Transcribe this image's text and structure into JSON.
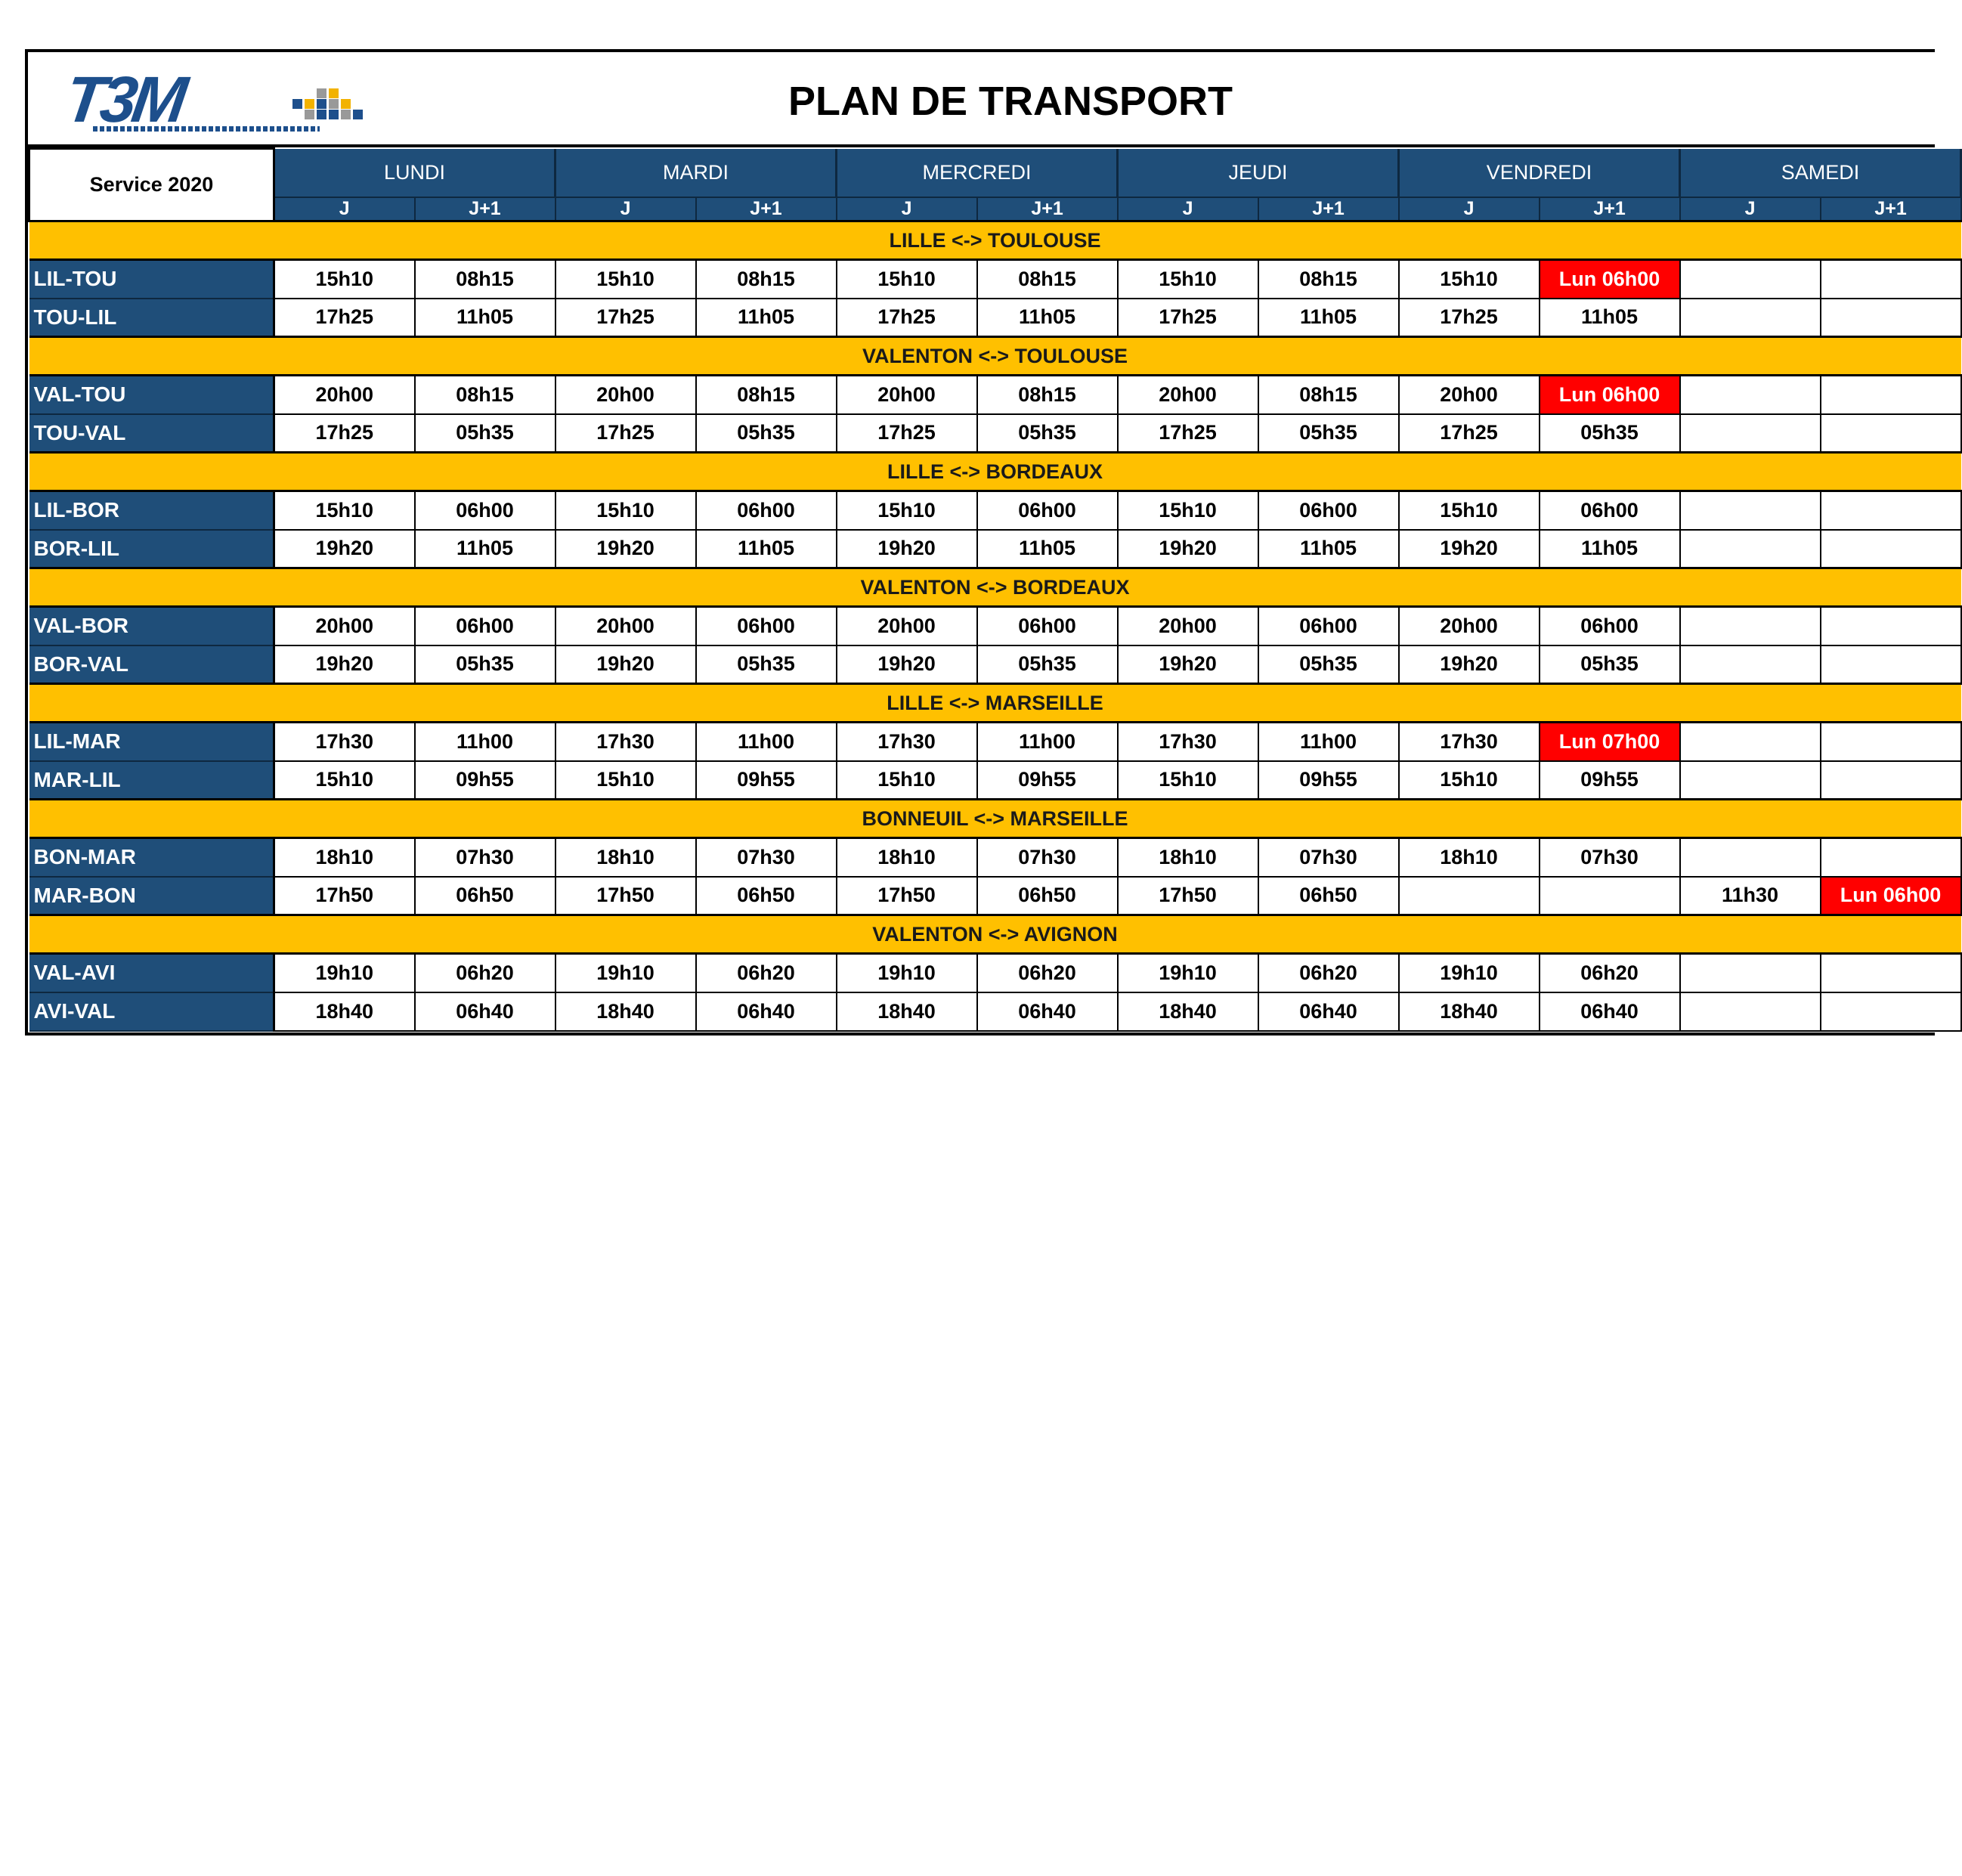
{
  "logo": {
    "text": "T3M"
  },
  "title": "PLAN DE TRANSPORT",
  "service_label": "Service 2020",
  "days": [
    "LUNDI",
    "MARDI",
    "MERCREDI",
    "JEUDI",
    "VENDREDI",
    "SAMEDI"
  ],
  "sub_headers": [
    "J",
    "J+1"
  ],
  "colors": {
    "header_blue": "#1f4e79",
    "group_yellow": "#ffc000",
    "highlight_red": "#ff0000",
    "logo_blue": "#1d4f8c"
  },
  "groups": [
    {
      "title": "LILLE <-> TOULOUSE",
      "routes": [
        {
          "code": "LIL-TOU",
          "cells": [
            "15h10",
            "08h15",
            "15h10",
            "08h15",
            "15h10",
            "08h15",
            "15h10",
            "08h15",
            "15h10",
            "Lun 06h00",
            "",
            ""
          ],
          "highlight": [
            9
          ]
        },
        {
          "code": "TOU-LIL",
          "cells": [
            "17h25",
            "11h05",
            "17h25",
            "11h05",
            "17h25",
            "11h05",
            "17h25",
            "11h05",
            "17h25",
            "11h05",
            "",
            ""
          ],
          "highlight": []
        }
      ]
    },
    {
      "title": "VALENTON <-> TOULOUSE",
      "routes": [
        {
          "code": "VAL-TOU",
          "cells": [
            "20h00",
            "08h15",
            "20h00",
            "08h15",
            "20h00",
            "08h15",
            "20h00",
            "08h15",
            "20h00",
            "Lun 06h00",
            "",
            ""
          ],
          "highlight": [
            9
          ]
        },
        {
          "code": "TOU-VAL",
          "cells": [
            "17h25",
            "05h35",
            "17h25",
            "05h35",
            "17h25",
            "05h35",
            "17h25",
            "05h35",
            "17h25",
            "05h35",
            "",
            ""
          ],
          "highlight": []
        }
      ]
    },
    {
      "title": "LILLE <-> BORDEAUX",
      "routes": [
        {
          "code": "LIL-BOR",
          "cells": [
            "15h10",
            "06h00",
            "15h10",
            "06h00",
            "15h10",
            "06h00",
            "15h10",
            "06h00",
            "15h10",
            "06h00",
            "",
            ""
          ],
          "highlight": []
        },
        {
          "code": "BOR-LIL",
          "cells": [
            "19h20",
            "11h05",
            "19h20",
            "11h05",
            "19h20",
            "11h05",
            "19h20",
            "11h05",
            "19h20",
            "11h05",
            "",
            ""
          ],
          "highlight": []
        }
      ]
    },
    {
      "title": "VALENTON <-> BORDEAUX",
      "routes": [
        {
          "code": "VAL-BOR",
          "cells": [
            "20h00",
            "06h00",
            "20h00",
            "06h00",
            "20h00",
            "06h00",
            "20h00",
            "06h00",
            "20h00",
            "06h00",
            "",
            ""
          ],
          "highlight": []
        },
        {
          "code": "BOR-VAL",
          "cells": [
            "19h20",
            "05h35",
            "19h20",
            "05h35",
            "19h20",
            "05h35",
            "19h20",
            "05h35",
            "19h20",
            "05h35",
            "",
            ""
          ],
          "highlight": []
        }
      ]
    },
    {
      "title": "LILLE <-> MARSEILLE",
      "routes": [
        {
          "code": "LIL-MAR",
          "cells": [
            "17h30",
            "11h00",
            "17h30",
            "11h00",
            "17h30",
            "11h00",
            "17h30",
            "11h00",
            "17h30",
            "Lun 07h00",
            "",
            ""
          ],
          "highlight": [
            9
          ]
        },
        {
          "code": "MAR-LIL",
          "cells": [
            "15h10",
            "09h55",
            "15h10",
            "09h55",
            "15h10",
            "09h55",
            "15h10",
            "09h55",
            "15h10",
            "09h55",
            "",
            ""
          ],
          "highlight": []
        }
      ]
    },
    {
      "title": "BONNEUIL <-> MARSEILLE",
      "routes": [
        {
          "code": "BON-MAR",
          "cells": [
            "18h10",
            "07h30",
            "18h10",
            "07h30",
            "18h10",
            "07h30",
            "18h10",
            "07h30",
            "18h10",
            "07h30",
            "",
            ""
          ],
          "highlight": []
        },
        {
          "code": "MAR-BON",
          "cells": [
            "17h50",
            "06h50",
            "17h50",
            "06h50",
            "17h50",
            "06h50",
            "17h50",
            "06h50",
            "",
            "",
            "11h30",
            "Lun 06h00"
          ],
          "highlight": [
            11
          ]
        }
      ]
    },
    {
      "title": "VALENTON <-> AVIGNON",
      "routes": [
        {
          "code": "VAL-AVI",
          "cells": [
            "19h10",
            "06h20",
            "19h10",
            "06h20",
            "19h10",
            "06h20",
            "19h10",
            "06h20",
            "19h10",
            "06h20",
            "",
            ""
          ],
          "highlight": []
        },
        {
          "code": "AVI-VAL",
          "cells": [
            "18h40",
            "06h40",
            "18h40",
            "06h40",
            "18h40",
            "06h40",
            "18h40",
            "06h40",
            "18h40",
            "06h40",
            "",
            ""
          ],
          "highlight": []
        }
      ]
    }
  ]
}
